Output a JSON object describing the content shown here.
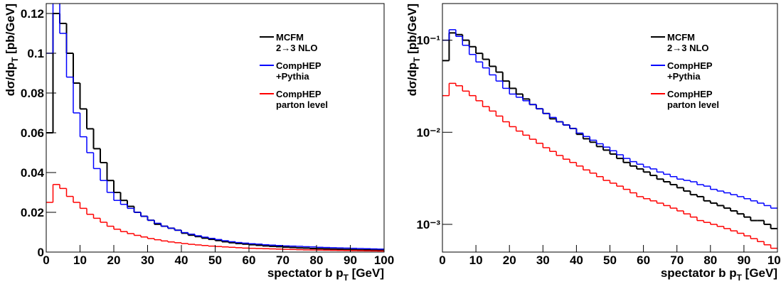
{
  "chart_data": [
    {
      "type": "histogram",
      "log_y": false,
      "xlabel": [
        "spectator b p",
        "T",
        " [GeV]"
      ],
      "ylabel": [
        "dσ/dp",
        "T",
        " [pb/GeV]"
      ],
      "bins": [
        0,
        2,
        4,
        6,
        8,
        10,
        12,
        14,
        16,
        18,
        20,
        22,
        24,
        26,
        28,
        30,
        32,
        34,
        36,
        38,
        40,
        42,
        44,
        46,
        48,
        50,
        52,
        54,
        56,
        58,
        60,
        62,
        64,
        66,
        68,
        70,
        72,
        74,
        76,
        78,
        80,
        82,
        84,
        86,
        88,
        90,
        92,
        94,
        96,
        98,
        100
      ],
      "xlim": [
        0,
        100
      ],
      "xticks": [
        0,
        10,
        20,
        30,
        40,
        50,
        60,
        70,
        80,
        90,
        100
      ],
      "ylim": [
        0,
        0.125
      ],
      "yticks": [
        0,
        0.02,
        0.04,
        0.06,
        0.08,
        0.1,
        0.12
      ],
      "series": [
        {
          "name": "MCFM\n2→3 NLO",
          "color": "#000000",
          "values": [
            0.06,
            0.12,
            0.115,
            0.1,
            0.085,
            0.072,
            0.062,
            0.052,
            0.045,
            0.036,
            0.03,
            0.026,
            0.023,
            0.02,
            0.018,
            0.016,
            0.014,
            0.013,
            0.012,
            0.011,
            0.0095,
            0.0085,
            0.0078,
            0.007,
            0.0064,
            0.0058,
            0.0052,
            0.0047,
            0.0043,
            0.004,
            0.0037,
            0.0034,
            0.0031,
            0.0029,
            0.0027,
            0.0025,
            0.0023,
            0.0021,
            0.002,
            0.0018,
            0.0017,
            0.0016,
            0.0015,
            0.0014,
            0.0013,
            0.0012,
            0.0011,
            0.0011,
            0.001,
            0.0009
          ]
        },
        {
          "name": "CompHEP\n+Pythia",
          "color": "#0000ff",
          "values": [
            0.1,
            0.13,
            0.11,
            0.088,
            0.07,
            0.058,
            0.05,
            0.042,
            0.036,
            0.03,
            0.026,
            0.024,
            0.022,
            0.02,
            0.018,
            0.016,
            0.0145,
            0.013,
            0.012,
            0.011,
            0.0098,
            0.009,
            0.0082,
            0.0075,
            0.0069,
            0.0063,
            0.0057,
            0.0052,
            0.0048,
            0.0045,
            0.0042,
            0.004,
            0.0037,
            0.0035,
            0.0033,
            0.0031,
            0.003,
            0.0029,
            0.0027,
            0.0026,
            0.0024,
            0.0023,
            0.0022,
            0.0021,
            0.002,
            0.0019,
            0.0018,
            0.0017,
            0.0016,
            0.0015
          ]
        },
        {
          "name": "CompHEP\nparton level",
          "color": "#ff0000",
          "values": [
            0.025,
            0.034,
            0.032,
            0.028,
            0.025,
            0.022,
            0.019,
            0.017,
            0.015,
            0.013,
            0.0115,
            0.0103,
            0.0093,
            0.0084,
            0.0076,
            0.0068,
            0.0062,
            0.0056,
            0.0051,
            0.0047,
            0.0043,
            0.0039,
            0.0036,
            0.0033,
            0.003,
            0.0028,
            0.0026,
            0.0024,
            0.0022,
            0.002,
            0.0019,
            0.0018,
            0.0017,
            0.0016,
            0.0015,
            0.0014,
            0.0013,
            0.0012,
            0.0011,
            0.00105,
            0.001,
            0.00095,
            0.0009,
            0.00085,
            0.0008,
            0.00075,
            0.0007,
            0.00065,
            0.0006,
            0.00055
          ]
        }
      ]
    },
    {
      "type": "histogram",
      "log_y": true,
      "xlabel": [
        "spectator b p",
        "T",
        " [GeV]"
      ],
      "ylabel": [
        "dσ/dp",
        "T",
        " [pb/GeV]"
      ],
      "bins": [
        0,
        2,
        4,
        6,
        8,
        10,
        12,
        14,
        16,
        18,
        20,
        22,
        24,
        26,
        28,
        30,
        32,
        34,
        36,
        38,
        40,
        42,
        44,
        46,
        48,
        50,
        52,
        54,
        56,
        58,
        60,
        62,
        64,
        66,
        68,
        70,
        72,
        74,
        76,
        78,
        80,
        82,
        84,
        86,
        88,
        90,
        92,
        94,
        96,
        98,
        100
      ],
      "xlim": [
        0,
        100
      ],
      "xticks": [
        0,
        10,
        20,
        30,
        40,
        50,
        60,
        70,
        80,
        90,
        100
      ],
      "ylim": [
        0.0005,
        0.25
      ],
      "yticks": [
        {
          "value": 0.001,
          "label": "10⁻³"
        },
        {
          "value": 0.01,
          "label": "10⁻²"
        },
        {
          "value": 0.1,
          "label": "10⁻¹"
        }
      ],
      "series": [
        {
          "name": "MCFM\n2→3 NLO",
          "color": "#000000",
          "values": [
            0.06,
            0.12,
            0.115,
            0.1,
            0.085,
            0.072,
            0.062,
            0.052,
            0.045,
            0.036,
            0.03,
            0.026,
            0.023,
            0.02,
            0.018,
            0.016,
            0.014,
            0.013,
            0.012,
            0.011,
            0.0095,
            0.0085,
            0.0078,
            0.007,
            0.0064,
            0.0058,
            0.0052,
            0.0047,
            0.0043,
            0.004,
            0.0037,
            0.0034,
            0.0031,
            0.0029,
            0.0027,
            0.0025,
            0.0023,
            0.0021,
            0.002,
            0.0018,
            0.0017,
            0.0016,
            0.0015,
            0.0014,
            0.0013,
            0.0012,
            0.0011,
            0.0011,
            0.001,
            0.0009
          ]
        },
        {
          "name": "CompHEP\n+Pythia",
          "color": "#0000ff",
          "values": [
            0.1,
            0.13,
            0.11,
            0.088,
            0.07,
            0.058,
            0.05,
            0.042,
            0.036,
            0.03,
            0.026,
            0.024,
            0.022,
            0.02,
            0.018,
            0.016,
            0.0145,
            0.013,
            0.012,
            0.011,
            0.0098,
            0.009,
            0.0082,
            0.0075,
            0.0069,
            0.0063,
            0.0057,
            0.0052,
            0.0048,
            0.0045,
            0.0042,
            0.004,
            0.0037,
            0.0035,
            0.0033,
            0.0031,
            0.003,
            0.0029,
            0.0027,
            0.0026,
            0.0024,
            0.0023,
            0.0022,
            0.0021,
            0.002,
            0.0019,
            0.0018,
            0.0017,
            0.0016,
            0.0015
          ]
        },
        {
          "name": "CompHEP\nparton level",
          "color": "#ff0000",
          "values": [
            0.025,
            0.034,
            0.032,
            0.028,
            0.025,
            0.022,
            0.019,
            0.017,
            0.015,
            0.013,
            0.0115,
            0.0103,
            0.0093,
            0.0084,
            0.0076,
            0.0068,
            0.0062,
            0.0056,
            0.0051,
            0.0047,
            0.0043,
            0.0039,
            0.0036,
            0.0033,
            0.003,
            0.0028,
            0.0026,
            0.0024,
            0.0022,
            0.002,
            0.0019,
            0.0018,
            0.0017,
            0.0016,
            0.0015,
            0.0014,
            0.0013,
            0.0012,
            0.0011,
            0.00105,
            0.001,
            0.00095,
            0.0009,
            0.00085,
            0.0008,
            0.00075,
            0.0007,
            0.00065,
            0.0006,
            0.00055
          ]
        }
      ]
    }
  ]
}
